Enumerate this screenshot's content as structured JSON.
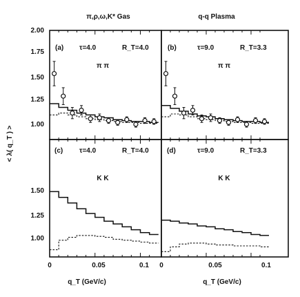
{
  "column_titles": [
    "π,ρ,ω,K* Gas",
    "q-q Plasma"
  ],
  "y_axis_label": "< λ( q_T ) >",
  "x_axis_label": "q_T (GeV/c)",
  "x_tick_labels_left": [
    "0",
    "0.05",
    "0.1"
  ],
  "x_tick_labels_right": [
    "0",
    "0.05",
    "0.1"
  ],
  "y_tick_labels_top": [
    "2.00",
    "1.75",
    "1.50",
    "1.25",
    "1.00"
  ],
  "y_tick_labels_bottom": [
    "1.50",
    "1.25",
    "1.00"
  ],
  "panels": [
    {
      "tag": "(a)",
      "tau": "τ=4.0",
      "rt": "R_T=4.0",
      "pair": "π π"
    },
    {
      "tag": "(b)",
      "tau": "τ=9.0",
      "rt": "R_T=3.3",
      "pair": "π π"
    },
    {
      "tag": "(c)",
      "tau": "τ=4.0",
      "rt": "R_T=4.0",
      "pair": "K K"
    },
    {
      "tag": "(d)",
      "tau": "τ=9.0",
      "rt": "R_T=3.3",
      "pair": "K K"
    }
  ],
  "chart_data": [
    {
      "type": "line",
      "panel": "(a)",
      "xlim": [
        0,
        0.12
      ],
      "ylim": [
        0.88,
        2.0
      ],
      "bin_edges": [
        0,
        0.01,
        0.02,
        0.03,
        0.04,
        0.05,
        0.06,
        0.07,
        0.08,
        0.09,
        0.1,
        0.11,
        0.12
      ],
      "series": [
        {
          "name": "",
          "style": "solid-step",
          "values": [
            1.22,
            1.18,
            1.15,
            1.12,
            1.1,
            1.08,
            1.07,
            1.05,
            1.04,
            1.03,
            1.03,
            1.02
          ]
        },
        {
          "name": "",
          "style": "dashed-step",
          "values": [
            1.1,
            1.12,
            1.1,
            1.08,
            1.06,
            1.05,
            1.04,
            1.03,
            1.02,
            1.02,
            1.01,
            1.01
          ]
        }
      ],
      "points": {
        "x": [
          0.005,
          0.015,
          0.025,
          0.035,
          0.045,
          0.055,
          0.065,
          0.075,
          0.085,
          0.095,
          0.105,
          0.115
        ],
        "y": [
          1.54,
          1.3,
          1.12,
          1.15,
          1.06,
          1.07,
          1.04,
          1.02,
          1.05,
          1.0,
          1.04,
          1.03
        ],
        "err": [
          0.13,
          0.09,
          0.06,
          0.05,
          0.04,
          0.04,
          0.03,
          0.03,
          0.03,
          0.03,
          0.03,
          0.03
        ]
      }
    },
    {
      "type": "line",
      "panel": "(b)",
      "xlim": [
        0,
        0.12
      ],
      "ylim": [
        0.88,
        2.0
      ],
      "bin_edges": [
        0,
        0.01,
        0.02,
        0.03,
        0.04,
        0.05,
        0.06,
        0.07,
        0.08,
        0.09,
        0.1,
        0.11,
        0.12
      ],
      "series": [
        {
          "name": "",
          "style": "solid-step",
          "values": [
            1.2,
            1.17,
            1.14,
            1.11,
            1.09,
            1.08,
            1.06,
            1.05,
            1.04,
            1.03,
            1.03,
            1.02
          ]
        },
        {
          "name": "",
          "style": "dashed-step",
          "values": [
            1.08,
            1.11,
            1.1,
            1.08,
            1.06,
            1.05,
            1.04,
            1.03,
            1.02,
            1.02,
            1.01,
            1.01
          ]
        }
      ],
      "points": {
        "x": [
          0.005,
          0.015,
          0.025,
          0.035,
          0.045,
          0.055,
          0.065,
          0.075,
          0.085,
          0.095,
          0.105,
          0.115
        ],
        "y": [
          1.54,
          1.3,
          1.12,
          1.15,
          1.06,
          1.07,
          1.04,
          1.02,
          1.05,
          1.0,
          1.04,
          1.03
        ],
        "err": [
          0.13,
          0.09,
          0.06,
          0.05,
          0.04,
          0.04,
          0.03,
          0.03,
          0.03,
          0.03,
          0.03,
          0.03
        ]
      }
    },
    {
      "type": "line",
      "panel": "(c)",
      "xlim": [
        0,
        0.12
      ],
      "ylim": [
        0.83,
        1.65
      ],
      "bin_edges": [
        0,
        0.01,
        0.02,
        0.03,
        0.04,
        0.05,
        0.06,
        0.07,
        0.08,
        0.09,
        0.1,
        0.11,
        0.12
      ],
      "series": [
        {
          "name": "",
          "style": "solid-step",
          "values": [
            1.49,
            1.43,
            1.37,
            1.31,
            1.26,
            1.22,
            1.18,
            1.15,
            1.12,
            1.09,
            1.06,
            1.04
          ]
        },
        {
          "name": "",
          "style": "dashed-step",
          "values": [
            0.88,
            0.98,
            1.01,
            1.03,
            1.03,
            1.02,
            1.01,
            0.99,
            0.98,
            0.97,
            0.96,
            0.95
          ]
        }
      ]
    },
    {
      "type": "line",
      "panel": "(d)",
      "xlim": [
        0,
        0.12
      ],
      "ylim": [
        0.83,
        1.65
      ],
      "bin_edges": [
        0,
        0.01,
        0.02,
        0.03,
        0.04,
        0.05,
        0.06,
        0.07,
        0.08,
        0.09,
        0.1,
        0.11,
        0.12
      ],
      "series": [
        {
          "name": "",
          "style": "solid-step",
          "values": [
            1.19,
            1.18,
            1.16,
            1.15,
            1.13,
            1.12,
            1.1,
            1.09,
            1.07,
            1.06,
            1.04,
            1.03
          ]
        },
        {
          "name": "",
          "style": "dashed-step",
          "values": [
            0.86,
            0.91,
            0.94,
            0.95,
            0.95,
            0.94,
            0.93,
            0.93,
            0.92,
            0.92,
            0.92,
            0.91
          ]
        }
      ]
    }
  ]
}
